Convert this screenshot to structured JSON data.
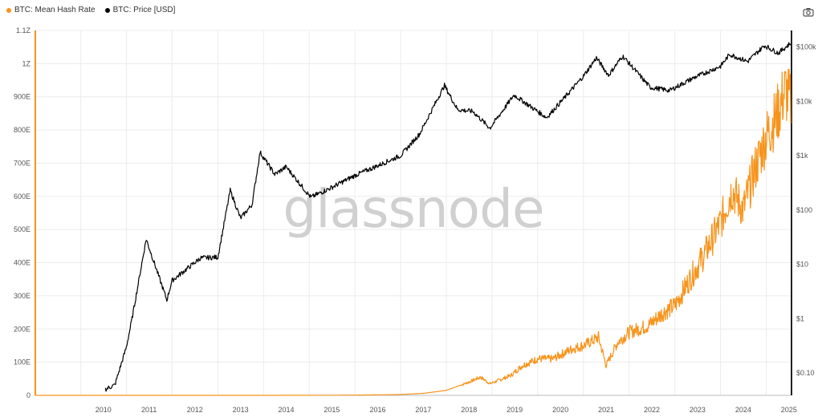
{
  "legend": {
    "hash_label": "BTC: Mean Hash Rate",
    "price_label": "BTC: Price [USD]"
  },
  "watermark": "glassnode",
  "icons": {
    "camera": "camera-icon"
  },
  "colors": {
    "hash": "#f7931a",
    "price": "#000000",
    "grid": "#ececec"
  },
  "chart_data": {
    "type": "line",
    "x_axis": {
      "range": [
        "2009-01-03",
        "2025-07-15"
      ],
      "ticks": [
        "2010",
        "2011",
        "2012",
        "2013",
        "2014",
        "2015",
        "2016",
        "2017",
        "2018",
        "2019",
        "2020",
        "2021",
        "2022",
        "2023",
        "2024",
        "2025"
      ]
    },
    "y_left": {
      "scale": "linear",
      "range": [
        0,
        1100
      ],
      "unit": "EH/s",
      "ticks": [
        {
          "v": 0,
          "label": "0"
        },
        {
          "v": 100,
          "label": "100E"
        },
        {
          "v": 200,
          "label": "200E"
        },
        {
          "v": 300,
          "label": "300E"
        },
        {
          "v": 400,
          "label": "400E"
        },
        {
          "v": 500,
          "label": "500E"
        },
        {
          "v": 600,
          "label": "600E"
        },
        {
          "v": 700,
          "label": "700E"
        },
        {
          "v": 800,
          "label": "800E"
        },
        {
          "v": 900,
          "label": "900E"
        },
        {
          "v": 1000,
          "label": "1Z"
        },
        {
          "v": 1100,
          "label": "1.1Z"
        }
      ]
    },
    "y_right": {
      "scale": "log",
      "ticks": [
        {
          "v": 0.1,
          "label": "$0.10"
        },
        {
          "v": 1,
          "label": "$1"
        },
        {
          "v": 10,
          "label": "$10"
        },
        {
          "v": 100,
          "label": "$100"
        },
        {
          "v": 1000,
          "label": "$1k"
        },
        {
          "v": 10000,
          "label": "$10k"
        },
        {
          "v": 100000,
          "label": "$100k"
        }
      ]
    },
    "grid": true,
    "series": [
      {
        "name": "BTC: Mean Hash Rate",
        "axis": "left",
        "points": [
          [
            "2009-01-03",
            0
          ],
          [
            "2012-01-01",
            0.01
          ],
          [
            "2014-01-01",
            0.01
          ],
          [
            "2016-01-01",
            0.7
          ],
          [
            "2017-01-01",
            2.5
          ],
          [
            "2017-07-01",
            6
          ],
          [
            "2018-01-01",
            15
          ],
          [
            "2018-07-01",
            40
          ],
          [
            "2018-10-01",
            55
          ],
          [
            "2018-12-15",
            35
          ],
          [
            "2019-06-01",
            60
          ],
          [
            "2019-09-01",
            90
          ],
          [
            "2020-01-01",
            110
          ],
          [
            "2020-05-01",
            110
          ],
          [
            "2020-10-01",
            140
          ],
          [
            "2021-01-01",
            150
          ],
          [
            "2021-05-01",
            175
          ],
          [
            "2021-07-01",
            90
          ],
          [
            "2021-10-01",
            160
          ],
          [
            "2022-01-01",
            190
          ],
          [
            "2022-06-01",
            210
          ],
          [
            "2022-10-01",
            250
          ],
          [
            "2023-01-01",
            270
          ],
          [
            "2023-05-01",
            350
          ],
          [
            "2023-09-01",
            430
          ],
          [
            "2024-01-01",
            520
          ],
          [
            "2024-04-01",
            620
          ],
          [
            "2024-07-01",
            560
          ],
          [
            "2024-10-01",
            680
          ],
          [
            "2025-01-01",
            780
          ],
          [
            "2025-04-01",
            850
          ],
          [
            "2025-06-01",
            920
          ],
          [
            "2025-07-15",
            880
          ]
        ]
      },
      {
        "name": "BTC: Price [USD]",
        "axis": "right",
        "points": [
          [
            "2010-07-17",
            0.05
          ],
          [
            "2010-10-01",
            0.06
          ],
          [
            "2011-01-01",
            0.3
          ],
          [
            "2011-02-15",
            1
          ],
          [
            "2011-06-08",
            29
          ],
          [
            "2011-11-20",
            2.2
          ],
          [
            "2012-01-01",
            5
          ],
          [
            "2012-08-15",
            13
          ],
          [
            "2013-01-01",
            13.5
          ],
          [
            "2013-04-10",
            230
          ],
          [
            "2013-07-01",
            70
          ],
          [
            "2013-10-01",
            125
          ],
          [
            "2013-12-04",
            1150
          ],
          [
            "2014-04-01",
            450
          ],
          [
            "2014-07-01",
            620
          ],
          [
            "2015-01-14",
            170
          ],
          [
            "2015-07-01",
            260
          ],
          [
            "2016-01-01",
            430
          ],
          [
            "2016-07-01",
            650
          ],
          [
            "2017-01-01",
            1000
          ],
          [
            "2017-06-01",
            2500
          ],
          [
            "2017-12-17",
            19500
          ],
          [
            "2018-04-01",
            7000
          ],
          [
            "2018-08-01",
            6500
          ],
          [
            "2018-12-15",
            3200
          ],
          [
            "2019-06-26",
            13000
          ],
          [
            "2020-03-12",
            5000
          ],
          [
            "2020-08-01",
            11500
          ],
          [
            "2021-01-01",
            29000
          ],
          [
            "2021-04-14",
            63000
          ],
          [
            "2021-07-20",
            30000
          ],
          [
            "2021-11-10",
            68000
          ],
          [
            "2022-06-18",
            18000
          ],
          [
            "2022-11-21",
            15800
          ],
          [
            "2023-06-01",
            27000
          ],
          [
            "2024-01-01",
            44000
          ],
          [
            "2024-03-14",
            73000
          ],
          [
            "2024-08-05",
            54000
          ],
          [
            "2024-12-17",
            106000
          ],
          [
            "2025-04-08",
            77000
          ],
          [
            "2025-07-15",
            118000
          ]
        ]
      }
    ]
  }
}
